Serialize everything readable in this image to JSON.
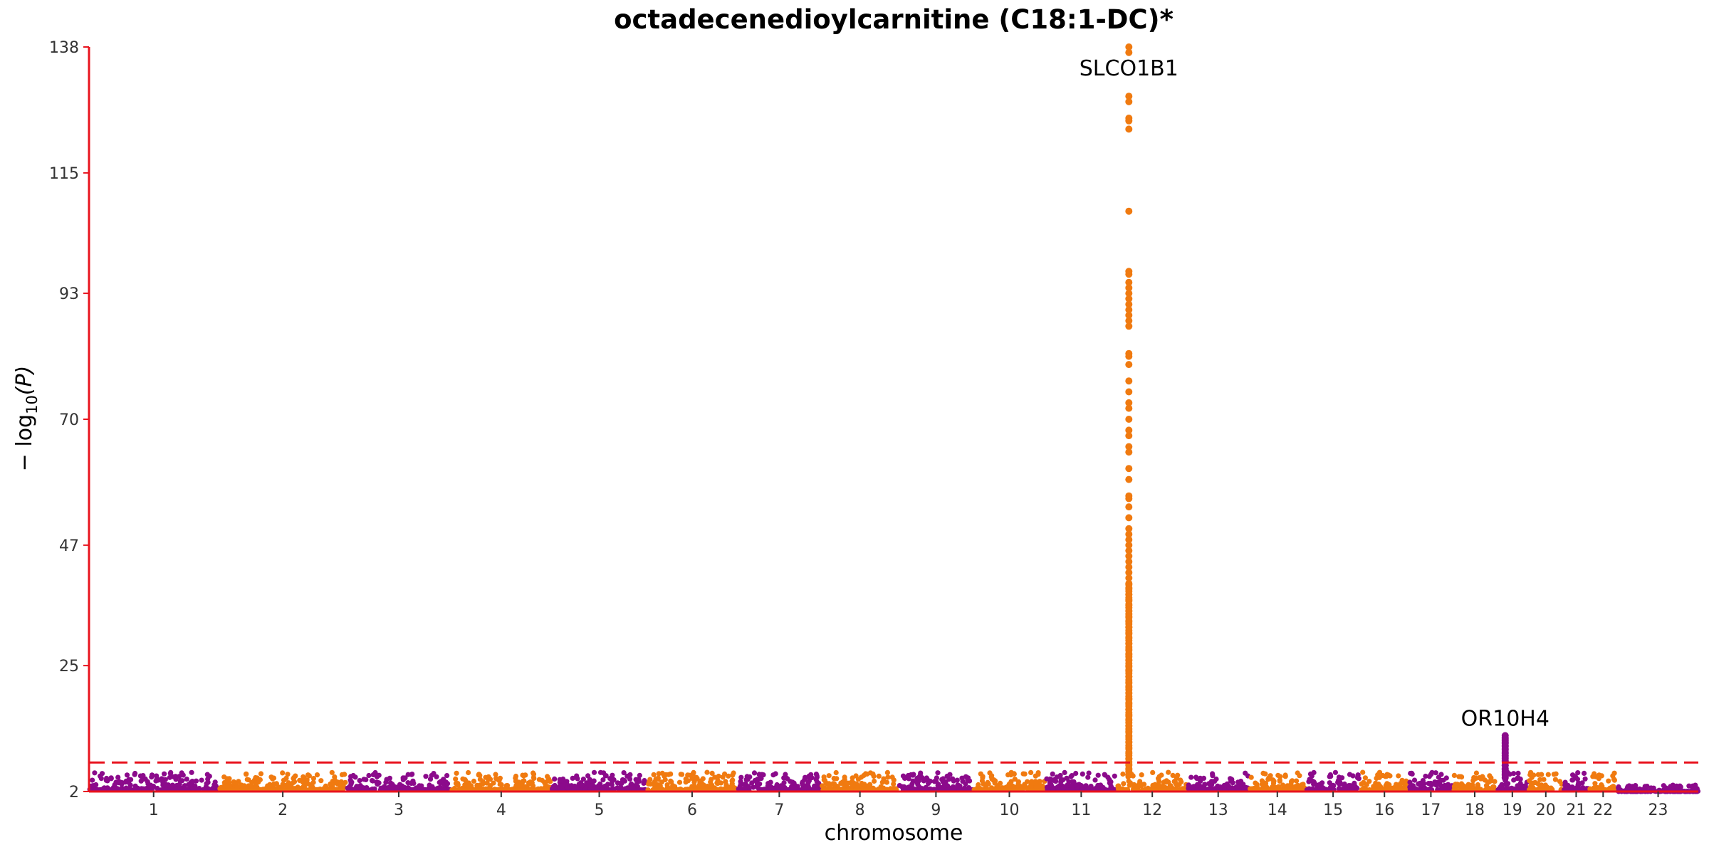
{
  "chart_data": {
    "type": "scatter",
    "subtype": "manhattan",
    "title": "octadecenedioylcarnitine (C18:1-DC)*",
    "xlabel": "chromosome",
    "ylabel": "− log10(P)",
    "ylabel_parts": {
      "prefix": "− log",
      "sub": "10",
      "suffix": "(P)"
    },
    "ylim": [
      2,
      138
    ],
    "yticks": [
      "2",
      "25",
      "47",
      "70",
      "93",
      "115",
      "138"
    ],
    "threshold": 7.3,
    "colors": {
      "odd": "#8b0a8b",
      "even": "#f07a10",
      "axis": "#e8141e",
      "threshold": "#e8141e"
    },
    "chromosomes": [
      {
        "label": "1",
        "length": 249
      },
      {
        "label": "2",
        "length": 243
      },
      {
        "label": "3",
        "length": 198
      },
      {
        "label": "4",
        "length": 191
      },
      {
        "label": "5",
        "length": 181
      },
      {
        "label": "6",
        "length": 171
      },
      {
        "label": "7",
        "length": 159
      },
      {
        "label": "8",
        "length": 146
      },
      {
        "label": "9",
        "length": 141
      },
      {
        "label": "10",
        "length": 136
      },
      {
        "label": "11",
        "length": 135
      },
      {
        "label": "12",
        "length": 133
      },
      {
        "label": "13",
        "length": 115
      },
      {
        "label": "14",
        "length": 107
      },
      {
        "label": "15",
        "length": 102
      },
      {
        "label": "16",
        "length": 90
      },
      {
        "label": "17",
        "length": 83
      },
      {
        "label": "18",
        "length": 80
      },
      {
        "label": "19",
        "length": 59
      },
      {
        "label": "20",
        "length": 64
      },
      {
        "label": "21",
        "length": 47
      },
      {
        "label": "22",
        "length": 51
      },
      {
        "label": "23",
        "length": 155
      }
    ],
    "background_level": {
      "base": 2.3,
      "spread": 3.2
    },
    "peaks": [
      {
        "chrom": "12",
        "position_mb": 21.3,
        "gene": "SLCO1B1",
        "values": [
          138,
          137,
          129,
          128,
          125,
          124.5,
          123,
          108,
          97,
          96.5,
          95,
          94,
          93,
          92,
          91,
          90,
          89,
          88,
          87,
          82,
          81.5,
          80,
          77,
          75,
          73,
          72,
          70,
          68,
          67,
          65,
          64,
          61,
          59,
          56,
          55.5,
          54,
          52,
          50,
          49,
          48,
          47,
          46,
          45,
          44,
          43,
          42,
          41,
          40,
          39,
          38,
          37,
          36,
          35,
          34,
          33,
          32,
          31,
          30,
          29,
          28,
          27,
          26,
          25,
          24,
          23,
          22,
          21,
          20,
          19,
          18,
          17,
          16,
          15,
          14,
          13,
          12,
          11,
          10,
          9,
          8,
          7,
          6,
          5
        ]
      },
      {
        "chrom": "19",
        "position_mb": 15.8,
        "gene": "OR10H4",
        "values": [
          12.2,
          11.8,
          11.3,
          10.8,
          10.2,
          9.6,
          9.0,
          8.3,
          7.6,
          6.8,
          6.0,
          5.2,
          4.5
        ]
      }
    ]
  }
}
